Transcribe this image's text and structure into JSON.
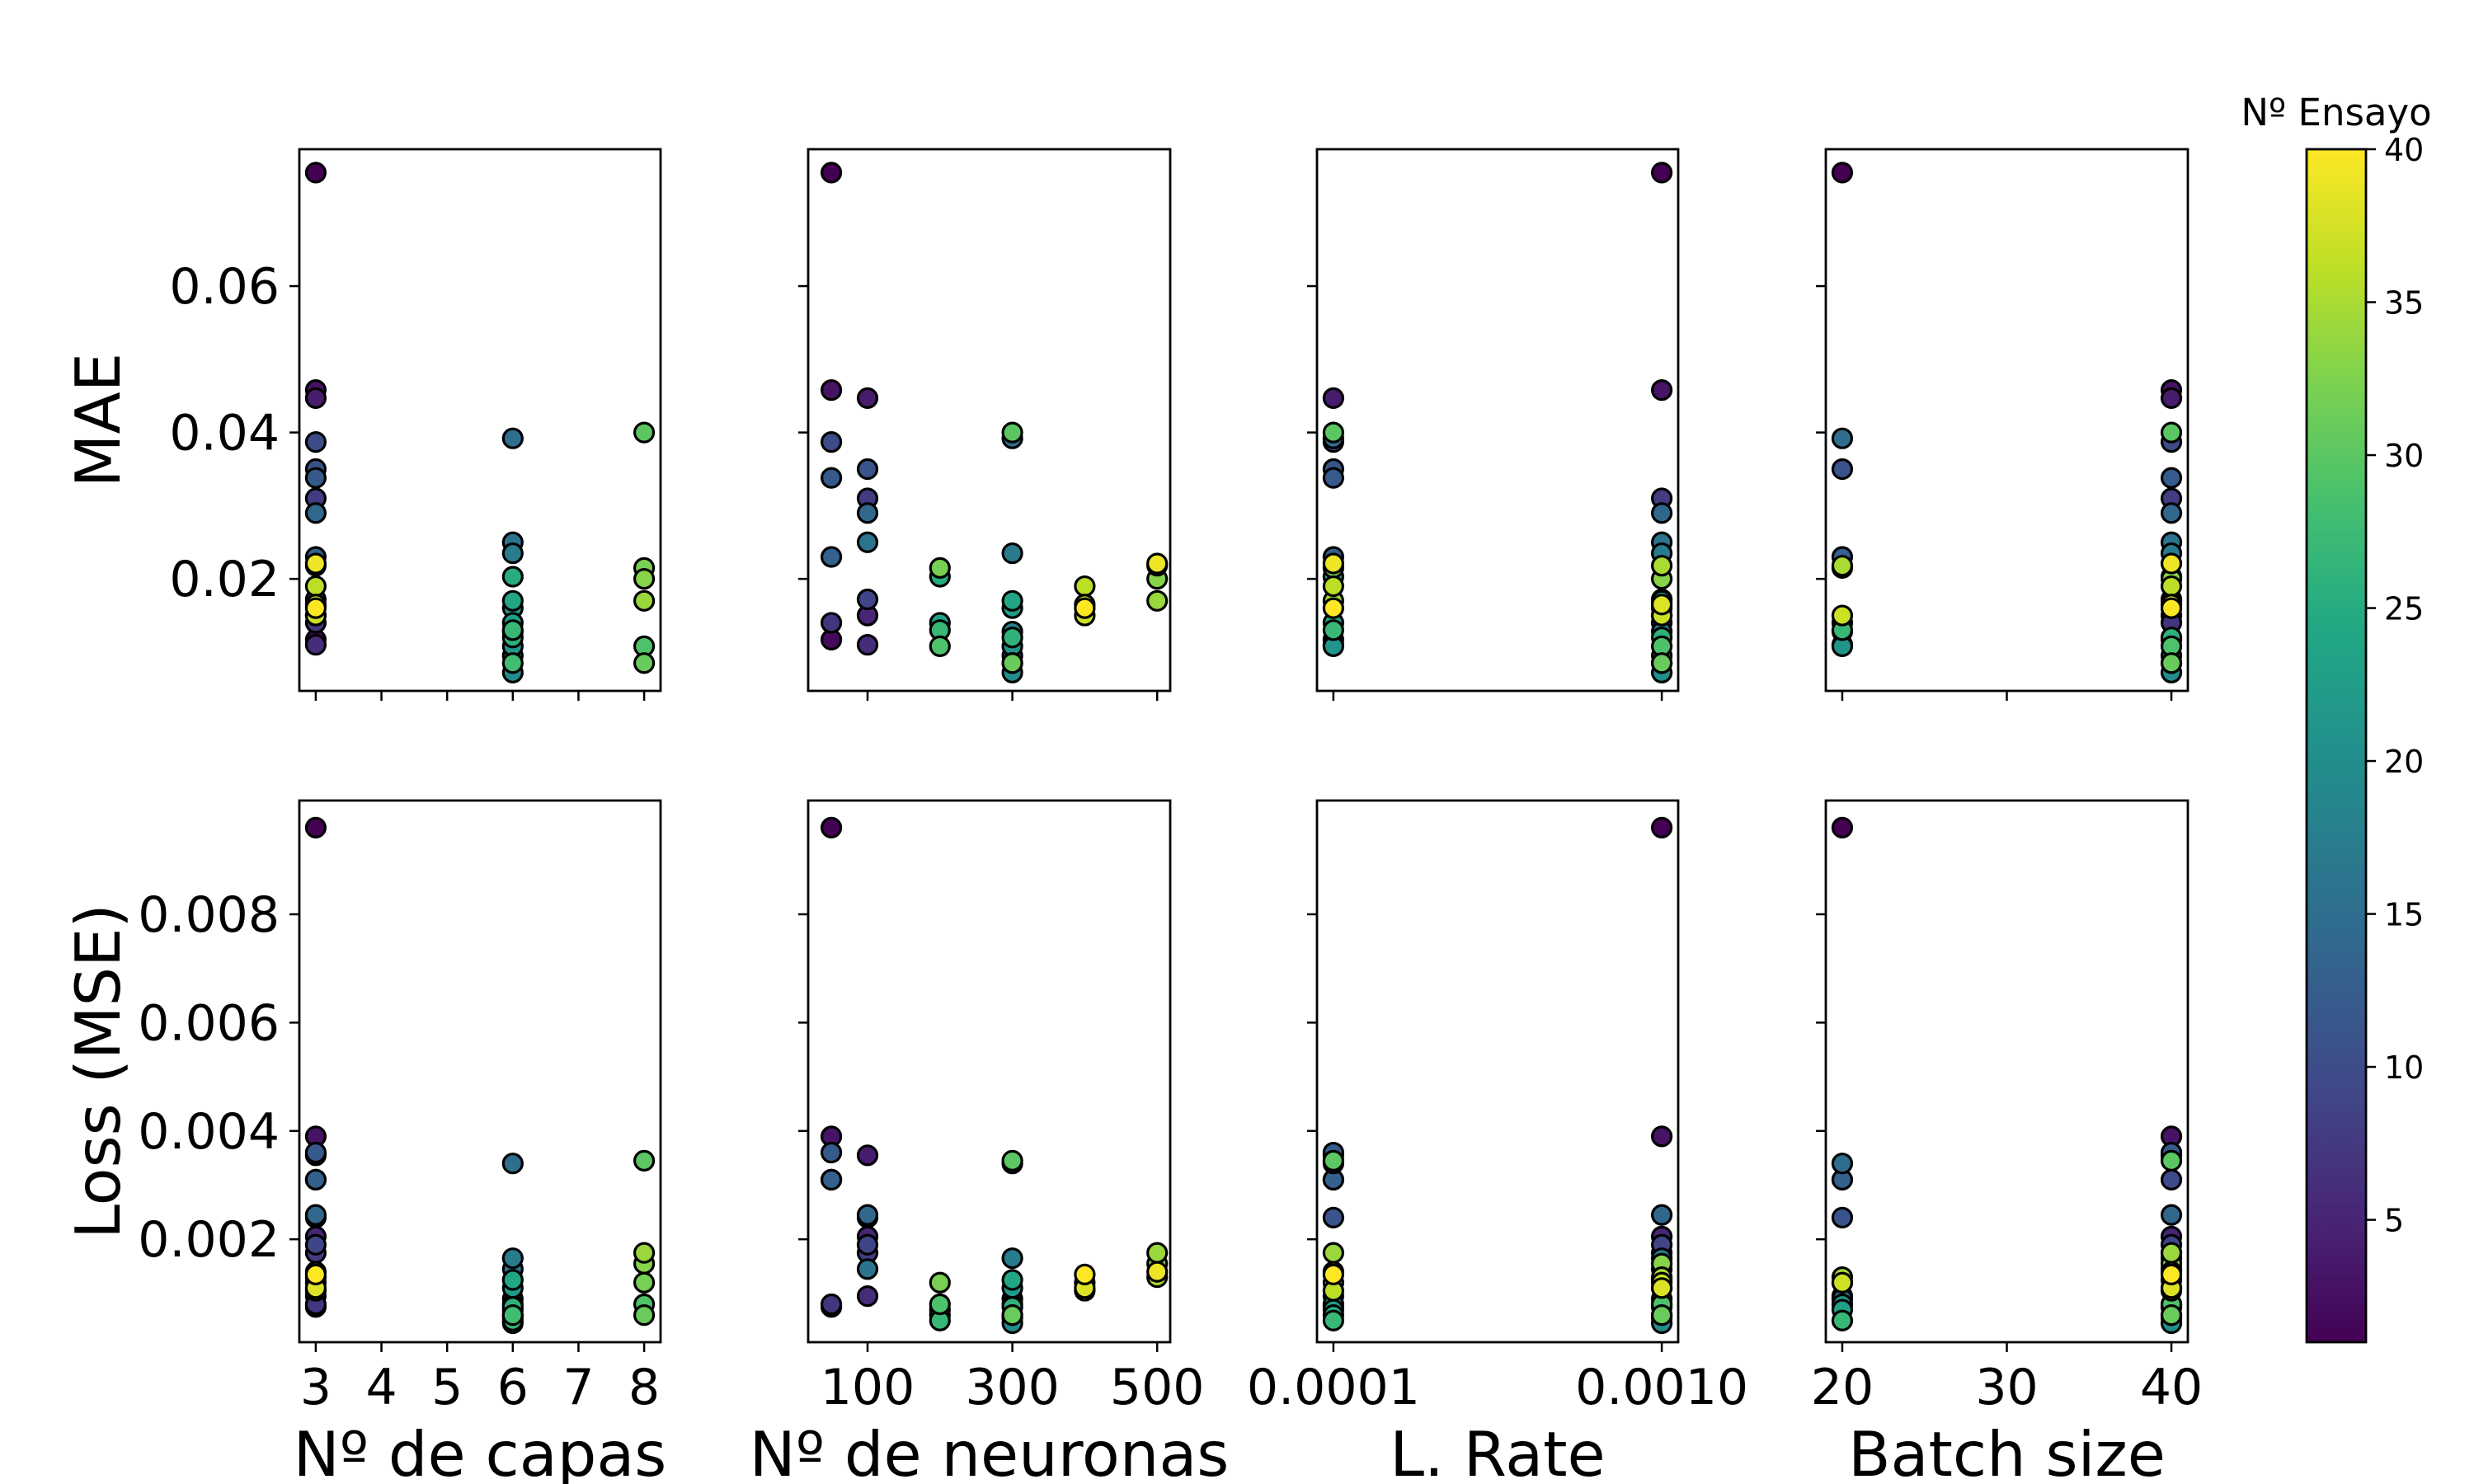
{
  "colorbar": {
    "title": "Nº Ensayo",
    "range": [
      1,
      40
    ],
    "ticks": [
      5,
      10,
      15,
      20,
      25,
      30,
      35,
      40
    ],
    "colormap": "viridis"
  },
  "chart_data": {
    "type": "scatter",
    "columns": [
      {
        "xlabel": "Nº de capas",
        "xrange": [
          2.75,
          8.25
        ],
        "xticks": [
          3,
          4,
          5,
          6,
          7,
          8
        ],
        "xticklabels": [
          "3",
          "4",
          "5",
          "6",
          "7",
          "8"
        ]
      },
      {
        "xlabel": "Nº de neuronas",
        "xrange": [
          18,
          518
        ],
        "xticks": [
          100,
          300,
          500
        ],
        "xticklabels": [
          "100",
          "300",
          "500"
        ]
      },
      {
        "xlabel": "L. Rate",
        "xrange": [
          5.5e-05,
          0.001045
        ],
        "xticks": [
          0.0001,
          0.001
        ],
        "xticklabels": [
          "0.0001",
          "0.0010"
        ]
      },
      {
        "xlabel": "Batch size",
        "xrange": [
          19.0,
          41.0
        ],
        "xticks": [
          20,
          30,
          40
        ],
        "xticklabels": [
          "20",
          "30",
          "40"
        ]
      }
    ],
    "rows": [
      {
        "ylabel": "MAE",
        "yrange": [
          0.0047,
          0.0787
        ],
        "yticks": [
          0.02,
          0.04,
          0.06
        ],
        "yticklabels": [
          "0.02",
          "0.04",
          "0.06"
        ]
      },
      {
        "ylabel": "Loss (MSE)",
        "yrange": [
          0.0001,
          0.0101
        ],
        "yticks": [
          0.002,
          0.004,
          0.006,
          0.008
        ],
        "yticklabels": [
          "0.002",
          "0.004",
          "0.006",
          "0.008"
        ]
      }
    ],
    "fields": [
      "trial",
      "layers",
      "neurons",
      "lr",
      "batch",
      "mae",
      "mse"
    ],
    "points": [
      [
        1,
        3,
        50,
        0.001,
        20,
        0.0755,
        0.0096
      ],
      [
        2,
        3,
        50,
        0.0001,
        40,
        0.0117,
        0.00075
      ],
      [
        3,
        3,
        50,
        0.001,
        40,
        0.0458,
        0.0039
      ],
      [
        4,
        3,
        100,
        0.0001,
        40,
        0.0447,
        0.00355
      ],
      [
        5,
        3,
        100,
        0.001,
        40,
        0.015,
        0.00205
      ],
      [
        6,
        3,
        100,
        0.0001,
        20,
        0.011,
        0.00095
      ],
      [
        7,
        3,
        50,
        0.001,
        40,
        0.014,
        0.0008
      ],
      [
        8,
        3,
        100,
        0.001,
        40,
        0.031,
        0.00175
      ],
      [
        9,
        3,
        100,
        0.001,
        40,
        0.0172,
        0.0019
      ],
      [
        10,
        3,
        50,
        0.0001,
        40,
        0.0387,
        0.0031
      ],
      [
        11,
        3,
        100,
        0.0001,
        20,
        0.035,
        0.0024
      ],
      [
        12,
        3,
        50,
        0.0001,
        40,
        0.0338,
        0.0036
      ],
      [
        13,
        3,
        50,
        0.0001,
        20,
        0.023,
        0.0031
      ],
      [
        14,
        3,
        100,
        0.001,
        40,
        0.029,
        0.00245
      ],
      [
        15,
        6,
        300,
        0.0001,
        20,
        0.0392,
        0.0034
      ],
      [
        16,
        6,
        100,
        0.001,
        40,
        0.025,
        0.00145
      ],
      [
        17,
        6,
        300,
        0.001,
        40,
        0.0235,
        0.00165
      ],
      [
        18,
        6,
        300,
        0.001,
        20,
        0.0128,
        0.0009
      ],
      [
        19,
        6,
        300,
        0.001,
        40,
        0.0095,
        0.00055
      ],
      [
        20,
        6,
        300,
        0.001,
        40,
        0.0072,
        0.00045
      ],
      [
        21,
        6,
        300,
        0.0001,
        20,
        0.0108,
        0.0008
      ],
      [
        22,
        6,
        300,
        0.001,
        40,
        0.016,
        0.0011
      ],
      [
        23,
        6,
        200,
        0.0001,
        20,
        0.014,
        0.0007
      ],
      [
        24,
        6,
        300,
        0.001,
        40,
        0.017,
        0.00125
      ],
      [
        25,
        6,
        200,
        0.0001,
        40,
        0.0203,
        0.0006
      ],
      [
        26,
        6,
        300,
        0.001,
        40,
        0.012,
        0.00075
      ],
      [
        27,
        6,
        200,
        0.0001,
        20,
        0.013,
        0.0005
      ],
      [
        28,
        6,
        300,
        0.001,
        40,
        0.0085,
        0.0006
      ],
      [
        29,
        8,
        200,
        0.001,
        40,
        0.0108,
        0.0008
      ],
      [
        30,
        8,
        300,
        0.0001,
        40,
        0.04,
        0.00345
      ],
      [
        31,
        8,
        300,
        0.001,
        40,
        0.0085,
        0.0006
      ],
      [
        32,
        8,
        200,
        0.0001,
        20,
        0.0215,
        0.0012
      ],
      [
        33,
        8,
        500,
        0.001,
        40,
        0.02,
        0.00155
      ],
      [
        34,
        8,
        500,
        0.0001,
        40,
        0.017,
        0.00175
      ],
      [
        35,
        3,
        500,
        0.001,
        20,
        0.0218,
        0.0013
      ],
      [
        36,
        3,
        400,
        0.0001,
        40,
        0.019,
        0.00105
      ],
      [
        37,
        3,
        400,
        0.001,
        20,
        0.015,
        0.0012
      ],
      [
        38,
        3,
        400,
        0.001,
        40,
        0.0165,
        0.0011
      ],
      [
        39,
        3,
        500,
        0.0001,
        40,
        0.0221,
        0.0014
      ],
      [
        40,
        3,
        400,
        0.0001,
        40,
        0.016,
        0.00135
      ]
    ]
  }
}
